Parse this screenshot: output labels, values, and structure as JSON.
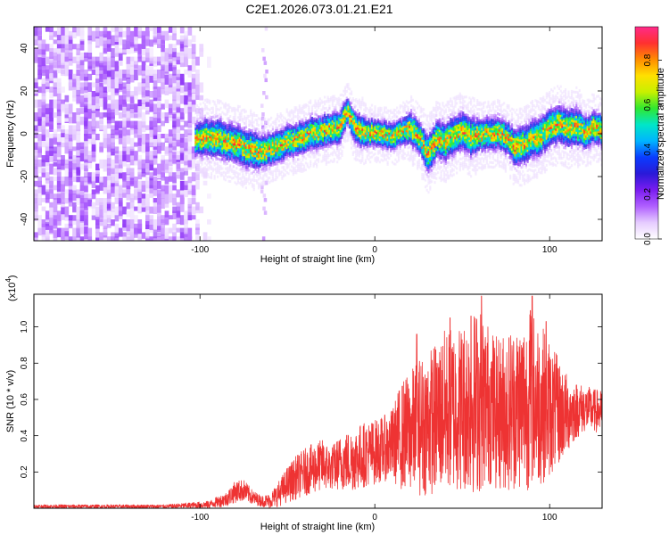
{
  "title": "C2E1.2026.073.01.21.E21",
  "chart_data": [
    {
      "type": "heatmap",
      "title": "C2E1.2026.073.01.21.E21",
      "xlabel": "Height of straight line (km)",
      "ylabel": "Frequency (Hz)",
      "xlim": [
        -195,
        130
      ],
      "ylim": [
        -50,
        50
      ],
      "xticks": [
        -100,
        0,
        100
      ],
      "xtick_labels": [
        "-100",
        "0",
        "100"
      ],
      "yticks": [
        -40,
        -20,
        0,
        20,
        40
      ],
      "ytick_labels": [
        "-40",
        "-20",
        "0",
        "20",
        "40"
      ],
      "colorbar": {
        "label": "Normalized spectral amplitude",
        "range": [
          0.0,
          0.95
        ],
        "ticks": [
          0.0,
          0.2,
          0.4,
          0.6,
          0.8
        ],
        "tick_labels": [
          "0.0",
          "0.2",
          "0.4",
          "0.6",
          "0.8"
        ],
        "colormap": [
          "#ffffff",
          "#e6ccff",
          "#b060ff",
          "#7a1cf0",
          "#2a1ad8",
          "#0a3cff",
          "#00b4ff",
          "#00e6c8",
          "#30e830",
          "#c8f000",
          "#ffe000",
          "#ff8c00",
          "#ff3030",
          "#ff2a8a"
        ]
      },
      "broadband_noise_region": [
        -195,
        -103
      ],
      "vertical_stripe_km": -64,
      "ridge_profile_km": [
        -103,
        -95,
        -90,
        -85,
        -80,
        -75,
        -70,
        -65,
        -60,
        -55,
        -50,
        -45,
        -40,
        -35,
        -30,
        -25,
        -20,
        -16,
        -12,
        -8,
        -4,
        0,
        5,
        10,
        15,
        20,
        25,
        30,
        35,
        40,
        45,
        50,
        55,
        60,
        65,
        70,
        75,
        80,
        85,
        90,
        95,
        100,
        105,
        110,
        115,
        120,
        125,
        130
      ],
      "ridge_profile_hz": [
        -3,
        -2,
        -3,
        -4,
        -5,
        -7,
        -8,
        -9,
        -8,
        -6,
        -4,
        -3,
        -1,
        0,
        1,
        2,
        3,
        11,
        3,
        1,
        0,
        0,
        -1,
        -2,
        1,
        2,
        -2,
        -10,
        -3,
        -4,
        -1,
        1,
        -2,
        -1,
        0,
        0,
        -2,
        -7,
        -5,
        -3,
        -1,
        3,
        4,
        2,
        3,
        0,
        3,
        1
      ],
      "ridge_width_hz": [
        6,
        7,
        7,
        7,
        7,
        7,
        7,
        6,
        6,
        6,
        6,
        6,
        6,
        6,
        6,
        6,
        6,
        5,
        6,
        6,
        5,
        5,
        5,
        5,
        5,
        6,
        6,
        7,
        7,
        7,
        7,
        7,
        7,
        6,
        6,
        6,
        6,
        7,
        7,
        7,
        7,
        7,
        7,
        7,
        7,
        6,
        6,
        6
      ]
    },
    {
      "type": "line",
      "xlabel": "Height of straight line (km)",
      "ylabel": "SNR (10 * v/v)",
      "y_multiplier_label": "(x10",
      "y_multiplier_exponent": "4",
      "y_multiplier_close": ")",
      "series_color": "#ee3333",
      "xlim": [
        -195,
        130
      ],
      "ylim": [
        0,
        1.18
      ],
      "xticks": [
        -100,
        0,
        100
      ],
      "xtick_labels": [
        "-100",
        "0",
        "100"
      ],
      "yticks": [
        0.2,
        0.4,
        0.6,
        0.8,
        1.0
      ],
      "ytick_labels": [
        "0.2",
        "0.4",
        "0.6",
        "0.8",
        "1.0"
      ],
      "envelope": {
        "x": [
          -195,
          -120,
          -95,
          -85,
          -80,
          -75,
          -70,
          -65,
          -60,
          -55,
          -50,
          -45,
          -40,
          -35,
          -30,
          -25,
          -20,
          -15,
          -10,
          -5,
          0,
          5,
          10,
          15,
          20,
          25,
          30,
          35,
          40,
          45,
          50,
          55,
          60,
          65,
          70,
          75,
          80,
          85,
          90,
          95,
          100,
          105,
          110,
          115,
          120,
          125,
          130
        ],
        "mean": [
          0.01,
          0.01,
          0.02,
          0.05,
          0.09,
          0.1,
          0.06,
          0.04,
          0.04,
          0.08,
          0.13,
          0.17,
          0.2,
          0.22,
          0.24,
          0.22,
          0.25,
          0.26,
          0.28,
          0.3,
          0.31,
          0.33,
          0.35,
          0.4,
          0.42,
          0.45,
          0.47,
          0.5,
          0.54,
          0.55,
          0.56,
          0.58,
          0.6,
          0.58,
          0.52,
          0.54,
          0.56,
          0.58,
          0.6,
          0.58,
          0.55,
          0.53,
          0.52,
          0.54,
          0.55,
          0.54,
          0.53
        ],
        "amp": [
          0.01,
          0.01,
          0.02,
          0.04,
          0.06,
          0.06,
          0.04,
          0.03,
          0.04,
          0.07,
          0.1,
          0.12,
          0.13,
          0.14,
          0.14,
          0.12,
          0.15,
          0.17,
          0.18,
          0.18,
          0.18,
          0.18,
          0.2,
          0.3,
          0.33,
          0.38,
          0.4,
          0.42,
          0.45,
          0.46,
          0.47,
          0.5,
          0.52,
          0.45,
          0.42,
          0.45,
          0.46,
          0.48,
          0.5,
          0.45,
          0.38,
          0.3,
          0.22,
          0.16,
          0.13,
          0.12,
          0.12
        ]
      },
      "peaks": [
        {
          "x": 24,
          "y": 0.96
        },
        {
          "x": 43,
          "y": 1.05
        },
        {
          "x": 55,
          "y": 1.06
        },
        {
          "x": 61,
          "y": 1.17
        },
        {
          "x": 89,
          "y": 1.09
        },
        {
          "x": 90,
          "y": 1.17
        },
        {
          "x": 98,
          "y": 1.03
        }
      ]
    }
  ]
}
